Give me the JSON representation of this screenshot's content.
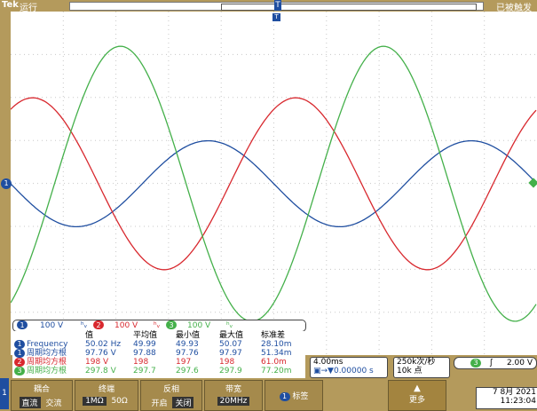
{
  "top": {
    "brand": "Tek",
    "run_state": "运行",
    "trigger_state": "已被触发",
    "trigger_marker": "T"
  },
  "channel_legend": {
    "ch1": {
      "num": "1",
      "scale": "100 V",
      "coupling": "ʰᵥ",
      "color": "#1f4ea0"
    },
    "ch2": {
      "num": "2",
      "scale": "100 V",
      "coupling": "ʰᵥ",
      "color": "#d8282e"
    },
    "ch3": {
      "num": "3",
      "scale": "100 V",
      "coupling": "ʰᵥ",
      "color": "#44b04a"
    }
  },
  "measurements": {
    "headers": [
      "值",
      "平均值",
      "最小值",
      "最大值",
      "标准差"
    ],
    "rows": [
      {
        "ch": "1",
        "color": "#1f4ea0",
        "name": "Frequency",
        "values": [
          "50.02 Hz",
          "49.99",
          "49.93",
          "50.07",
          "28.10m"
        ]
      },
      {
        "ch": "1",
        "color": "#1f4ea0",
        "name": "周期均方根",
        "values": [
          "97.76 V",
          "97.88",
          "97.76",
          "97.97",
          "51.34m"
        ]
      },
      {
        "ch": "2",
        "color": "#d8282e",
        "name": "周期均方根",
        "values": [
          "198 V",
          "198",
          "197",
          "198",
          "61.0m"
        ]
      },
      {
        "ch": "3",
        "color": "#44b04a",
        "name": "周期均方根",
        "values": [
          "297.8 V",
          "297.7",
          "297.6",
          "297.9",
          "77.20m"
        ]
      }
    ]
  },
  "timebase": {
    "scale": "4.00ms",
    "position": "▣→▼0.00000 s"
  },
  "acquisition": {
    "rate": "250k次/秒",
    "points": "10k 点"
  },
  "trigger": {
    "source": "3",
    "slope": "ʃ",
    "level": "2.00 V"
  },
  "menu": {
    "channel_num": "1",
    "coupling": {
      "title": "耦合",
      "options": [
        "直流",
        "交流"
      ],
      "selected": 0
    },
    "termination": {
      "title": "终端",
      "options": [
        "1MΩ",
        "50Ω"
      ],
      "selected": 0
    },
    "invert": {
      "title": "反相",
      "options": [
        "开启",
        "关闭"
      ],
      "selected": 1
    },
    "bandwidth": {
      "title": "带宽",
      "value": "20MHz"
    },
    "label": {
      "num": "1",
      "text": "标签"
    },
    "more": {
      "arrow": "▲",
      "text": "更多"
    }
  },
  "datetime": {
    "date": "7 8月 2021",
    "time": "11:23:04"
  },
  "waveforms": [
    {
      "channel": "1",
      "color": "#1f4ea0",
      "amplitude_div": 1.0,
      "center_div": 0,
      "phase_deg": 180
    },
    {
      "channel": "2",
      "color": "#d8282e",
      "amplitude_div": 2.0,
      "center_div": 0,
      "phase_deg": 60
    },
    {
      "channel": "3",
      "color": "#44b04a",
      "amplitude_div": 3.2,
      "center_div": 0,
      "phase_deg": 300
    }
  ],
  "period_ms": 20,
  "timebase_ms_per_div": 4
}
